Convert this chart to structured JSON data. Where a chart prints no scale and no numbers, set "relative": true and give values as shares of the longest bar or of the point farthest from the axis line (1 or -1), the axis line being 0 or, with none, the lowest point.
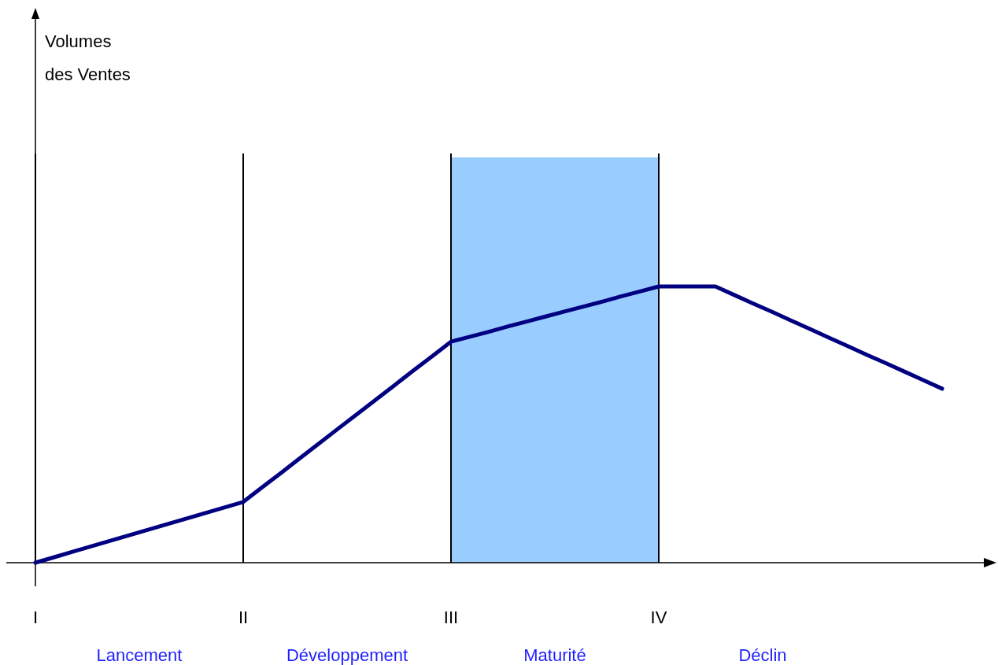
{
  "chart_data": {
    "type": "line",
    "relative": true,
    "categories": [
      "I",
      null,
      null,
      null,
      null,
      null,
      null,
      null,
      null,
      null,
      null,
      "II",
      null,
      null,
      null,
      null,
      null,
      null,
      null,
      null,
      null,
      null,
      "III",
      null,
      null,
      null,
      null,
      null,
      null,
      null,
      null,
      null,
      null,
      "IV",
      null,
      null,
      null,
      null,
      null,
      null,
      null,
      null,
      null,
      null,
      null,
      null,
      null,
      null,
      null,
      null,
      null
    ],
    "series": [
      {
        "color": "#000080",
        "values": [
          0,
          0.02,
          0.04,
          0.06,
          0.08,
          0.1,
          0.12,
          0.14,
          0.16,
          0.18,
          0.2,
          0.22,
          0.273,
          0.325,
          0.378,
          0.431,
          0.484,
          0.536,
          0.589,
          0.642,
          0.695,
          0.747,
          0.8,
          0.818,
          0.836,
          0.855,
          0.873,
          0.891,
          0.909,
          0.927,
          0.945,
          0.964,
          0.982,
          1,
          1,
          1,
          1,
          0.969,
          0.938,
          0.908,
          0.877,
          0.846,
          0.815,
          0.784,
          0.753,
          0.723,
          0.692,
          0.661,
          0.63,
          null,
          null
        ]
      }
    ],
    "tick_labels": "x",
    "marker": "none",
    "line_style": "solid",
    "ref_lines": [
      {
        "axis": "x",
        "value": "I"
      },
      {
        "axis": "x",
        "value": "II"
      },
      {
        "axis": "x",
        "value": "III"
      },
      {
        "axis": "x",
        "value": "IV"
      }
    ],
    "bands": [
      {
        "axis": "x",
        "from": "III",
        "to": "IV",
        "color": "#99ccff"
      }
    ],
    "annotations": [
      "Volumes des Ventes",
      "Lancement",
      "Développement",
      "Maturité",
      "Déclin"
    ]
  }
}
